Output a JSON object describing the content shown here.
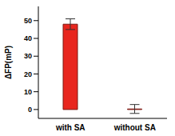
{
  "chart_data": {
    "type": "bar",
    "categories": [
      "with SA",
      "without SA"
    ],
    "values": [
      48,
      0.3
    ],
    "error": [
      3,
      2.5
    ],
    "color": "#e8261e",
    "y_label": "ΔFP(mP)",
    "ylim": [
      -5,
      58
    ],
    "yticks": [
      0,
      10,
      20,
      30,
      40,
      50
    ],
    "grid": false
  }
}
